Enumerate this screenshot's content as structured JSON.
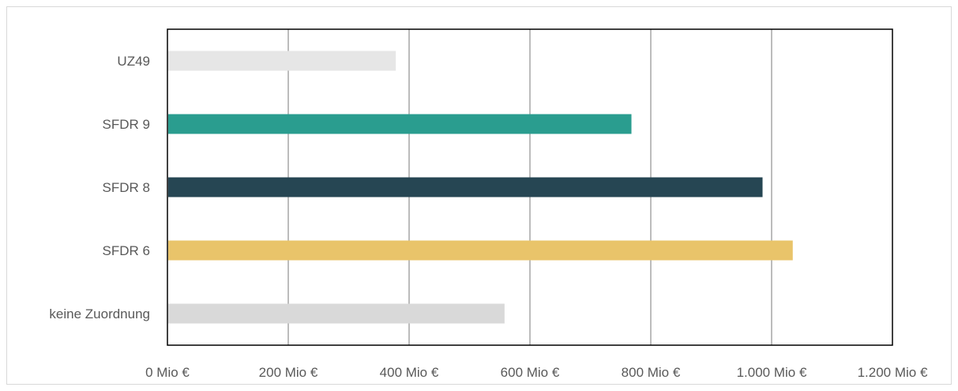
{
  "chart_data": {
    "type": "bar",
    "orientation": "horizontal",
    "categories": [
      "UZ49",
      "SFDR 9",
      "SFDR 8",
      "SFDR 6",
      "keine Zuordnung"
    ],
    "values": [
      378,
      768,
      985,
      1035,
      558
    ],
    "colors": [
      "#e6e6e6",
      "#2a9d8f",
      "#264653",
      "#e9c46a",
      "#d9d9d9"
    ],
    "x_ticks": [
      0,
      200,
      400,
      600,
      800,
      1000,
      1200
    ],
    "x_tick_labels": [
      "0 Mio €",
      "200 Mio €",
      "400 Mio €",
      "600 Mio €",
      "800 Mio €",
      "1.000 Mio €",
      "1.200 Mio €"
    ],
    "xlim": [
      0,
      1200
    ],
    "title": "",
    "xlabel": "",
    "ylabel": "",
    "grid": "vertical",
    "legend": "none"
  }
}
